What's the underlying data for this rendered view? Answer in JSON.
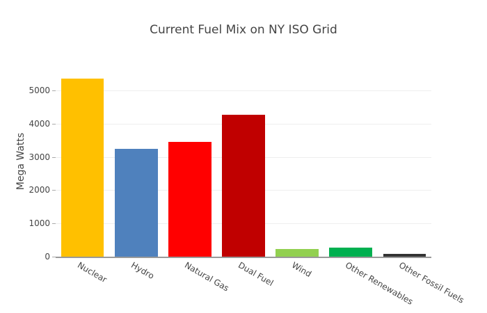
{
  "chart_data": {
    "type": "bar",
    "title": "Current Fuel Mix on NY ISO Grid",
    "xlabel": "",
    "ylabel": "Mega Watts",
    "categories": [
      "Nuclear",
      "Hydro",
      "Natural Gas",
      "Dual Fuel",
      "Wind",
      "Other Renewables",
      "Other Fossil Fuels"
    ],
    "values": [
      5356,
      3243,
      3452,
      4268,
      230,
      272,
      84
    ],
    "colors": [
      "#FFC000",
      "#4F81BD",
      "#FF0000",
      "#C00000",
      "#92D050",
      "#00B050",
      "#333333"
    ],
    "ylim": [
      0,
      5600
    ],
    "yticks": [
      0,
      1000,
      2000,
      3000,
      4000,
      5000
    ],
    "ytick_labels": [
      "0",
      "1000",
      "2000",
      "3000",
      "4000",
      "5000"
    ],
    "grid": true,
    "legend": false,
    "xtick_rotation": 30
  }
}
